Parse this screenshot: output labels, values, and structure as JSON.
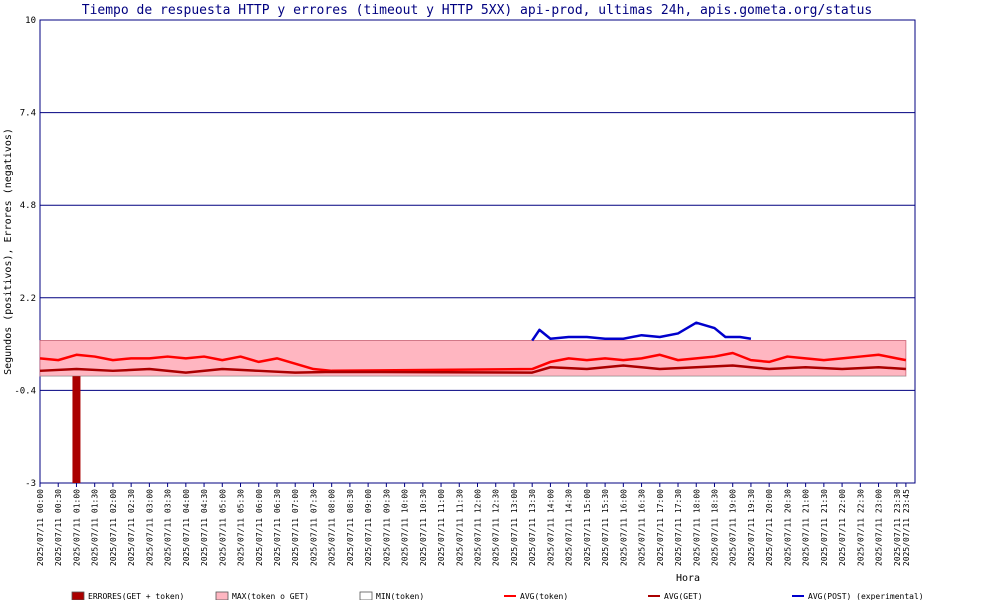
{
  "chart_data": {
    "type": "line",
    "title": "Tiempo de respuesta HTTP y errores (timeout y HTTP 5XX) api-prod, ultimas 24h, apis.gometa.org/status",
    "xlabel": "Hora",
    "ylabel": "Segundos (positivos), Errores (negativos)",
    "ylim": [
      -3,
      10
    ],
    "yticks": [
      "10",
      "7.4",
      "4.8",
      "2.2",
      "-0.4",
      "-3"
    ],
    "ytick_values": [
      10,
      7.4,
      4.8,
      2.2,
      -0.4,
      -3
    ],
    "x_labels": [
      "2025/07/11 00:00",
      "2025/07/11 00:30",
      "2025/07/11 01:00",
      "2025/07/11 01:30",
      "2025/07/11 02:00",
      "2025/07/11 02:30",
      "2025/07/11 03:00",
      "2025/07/11 03:30",
      "2025/07/11 04:00",
      "2025/07/11 04:30",
      "2025/07/11 05:00",
      "2025/07/11 05:30",
      "2025/07/11 06:00",
      "2025/07/11 06:30",
      "2025/07/11 07:00",
      "2025/07/11 07:30",
      "2025/07/11 08:00",
      "2025/07/11 08:30",
      "2025/07/11 09:00",
      "2025/07/11 09:30",
      "2025/07/11 10:00",
      "2025/07/11 10:30",
      "2025/07/11 11:00",
      "2025/07/11 11:30",
      "2025/07/11 12:00",
      "2025/07/11 12:30",
      "2025/07/11 13:00",
      "2025/07/11 13:30",
      "2025/07/11 14:00",
      "2025/07/11 14:30",
      "2025/07/11 15:00",
      "2025/07/11 15:30",
      "2025/07/11 16:00",
      "2025/07/11 16:30",
      "2025/07/11 17:00",
      "2025/07/11 17:30",
      "2025/07/11 18:00",
      "2025/07/11 18:30",
      "2025/07/11 19:00",
      "2025/07/11 19:30",
      "2025/07/11 20:00",
      "2025/07/11 20:30",
      "2025/07/11 21:00",
      "2025/07/11 21:30",
      "2025/07/11 22:00",
      "2025/07/11 22:30",
      "2025/07/11 23:00",
      "2025/07/11 23:30",
      "2025/07/11 23:45"
    ],
    "x_hours": [
      0,
      0.5,
      1,
      1.5,
      2,
      2.5,
      3,
      3.5,
      4,
      4.5,
      5,
      5.5,
      6,
      6.5,
      7,
      7.5,
      8,
      8.5,
      9,
      9.5,
      10,
      10.5,
      11,
      11.5,
      12,
      12.5,
      13,
      13.5,
      14,
      14.5,
      15,
      15.5,
      16,
      16.5,
      17,
      17.5,
      18,
      18.5,
      19,
      19.5,
      20,
      20.5,
      21,
      21.5,
      22,
      22.5,
      23,
      23.5,
      23.75
    ],
    "errors": [
      {
        "x": 1.0,
        "y": -3
      }
    ],
    "series": [
      {
        "name": "MAX(token o GET)",
        "color": "#ffb6c1",
        "kind": "area",
        "points": [
          [
            0,
            1
          ],
          [
            8,
            1
          ],
          [
            13.5,
            1
          ],
          [
            23.75,
            1
          ]
        ]
      },
      {
        "name": "MIN(token)",
        "color": "#ffffff",
        "kind": "area",
        "points": [
          [
            0,
            0
          ],
          [
            23.75,
            0
          ]
        ]
      },
      {
        "name": "AVG(token)",
        "color": "#ff0000",
        "kind": "line",
        "points": [
          [
            0,
            0.5
          ],
          [
            0.5,
            0.45
          ],
          [
            1,
            0.6
          ],
          [
            1.5,
            0.55
          ],
          [
            2,
            0.45
          ],
          [
            2.5,
            0.5
          ],
          [
            3,
            0.5
          ],
          [
            3.5,
            0.55
          ],
          [
            4,
            0.5
          ],
          [
            4.5,
            0.55
          ],
          [
            5,
            0.45
          ],
          [
            5.5,
            0.55
          ],
          [
            6,
            0.4
          ],
          [
            6.5,
            0.5
          ],
          [
            7,
            0.35
          ],
          [
            7.5,
            0.2
          ],
          [
            8,
            0.15
          ],
          [
            13.5,
            0.2
          ],
          [
            14,
            0.4
          ],
          [
            14.5,
            0.5
          ],
          [
            15,
            0.45
          ],
          [
            15.5,
            0.5
          ],
          [
            16,
            0.45
          ],
          [
            16.5,
            0.5
          ],
          [
            17,
            0.6
          ],
          [
            17.5,
            0.45
          ],
          [
            18,
            0.5
          ],
          [
            18.5,
            0.55
          ],
          [
            19,
            0.65
          ],
          [
            19.5,
            0.45
          ],
          [
            20,
            0.4
          ],
          [
            20.5,
            0.55
          ],
          [
            21,
            0.5
          ],
          [
            21.5,
            0.45
          ],
          [
            22,
            0.5
          ],
          [
            22.5,
            0.55
          ],
          [
            23,
            0.6
          ],
          [
            23.5,
            0.5
          ],
          [
            23.75,
            0.45
          ]
        ]
      },
      {
        "name": "AVG(GET)",
        "color": "#aa0000",
        "kind": "line",
        "points": [
          [
            0,
            0.15
          ],
          [
            1,
            0.2
          ],
          [
            2,
            0.15
          ],
          [
            3,
            0.2
          ],
          [
            4,
            0.1
          ],
          [
            5,
            0.2
          ],
          [
            6,
            0.15
          ],
          [
            7,
            0.1
          ],
          [
            8,
            0.12
          ],
          [
            13.5,
            0.1
          ],
          [
            14,
            0.25
          ],
          [
            15,
            0.2
          ],
          [
            16,
            0.3
          ],
          [
            17,
            0.2
          ],
          [
            18,
            0.25
          ],
          [
            19,
            0.3
          ],
          [
            20,
            0.2
          ],
          [
            21,
            0.25
          ],
          [
            22,
            0.2
          ],
          [
            23,
            0.25
          ],
          [
            23.75,
            0.2
          ]
        ]
      },
      {
        "name": "AVG(POST) (experimental)",
        "color": "#0000cc",
        "kind": "line",
        "points": [
          [
            13.5,
            1.0
          ],
          [
            13.7,
            1.3
          ],
          [
            14,
            1.05
          ],
          [
            14.5,
            1.1
          ],
          [
            15,
            1.1
          ],
          [
            15.5,
            1.05
          ],
          [
            16,
            1.05
          ],
          [
            16.5,
            1.15
          ],
          [
            17,
            1.1
          ],
          [
            17.5,
            1.2
          ],
          [
            18,
            1.5
          ],
          [
            18.5,
            1.35
          ],
          [
            18.8,
            1.1
          ],
          [
            19.2,
            1.1
          ],
          [
            19.5,
            1.05
          ]
        ]
      }
    ],
    "legend": {
      "placement": "bottom",
      "items": [
        {
          "label": "ERRORES(GET + token)",
          "color": "#aa0000",
          "swatch": "box"
        },
        {
          "label": "MAX(token o GET)",
          "color": "#ffb6c1",
          "swatch": "box"
        },
        {
          "label": "MIN(token)",
          "color": "#ffffff",
          "swatch": "box"
        },
        {
          "label": "AVG(token)",
          "color": "#ff0000",
          "swatch": "line"
        },
        {
          "label": "AVG(GET)",
          "color": "#aa0000",
          "swatch": "line"
        },
        {
          "label": "AVG(POST) (experimental)",
          "color": "#0000cc",
          "swatch": "line"
        }
      ]
    },
    "grid": true
  }
}
